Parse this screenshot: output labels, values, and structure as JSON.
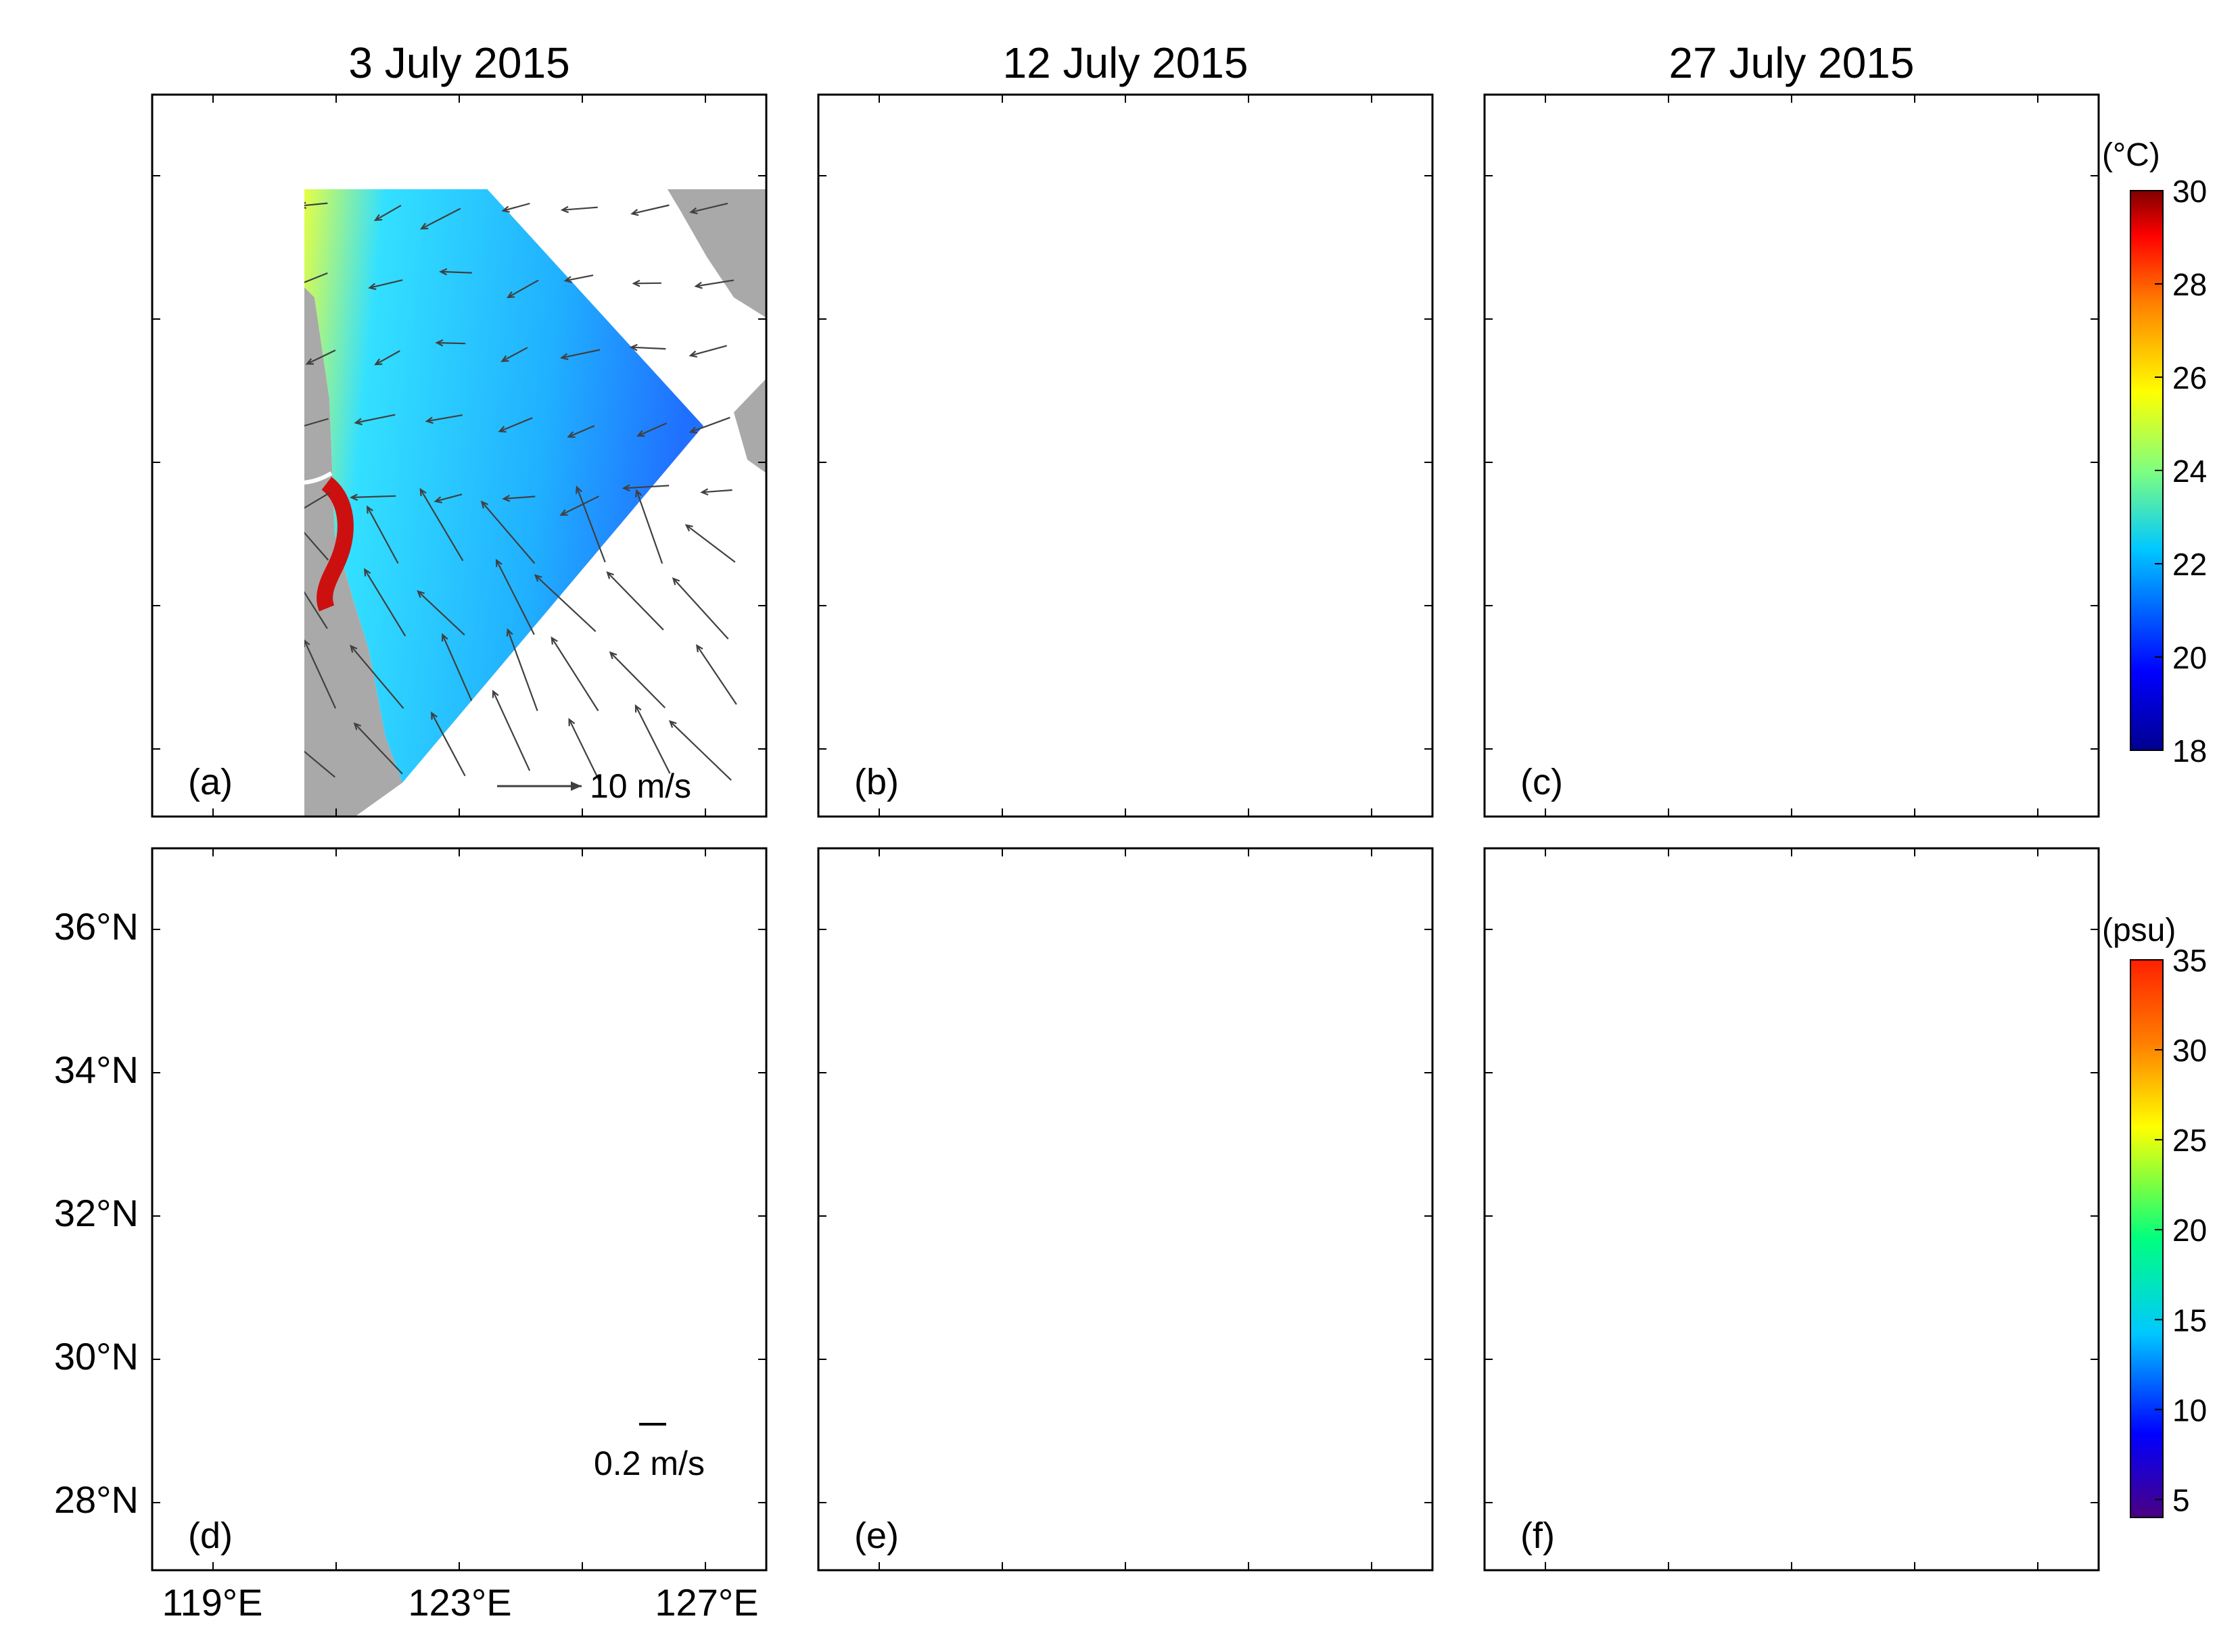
{
  "column_titles": [
    "3 July 2015",
    "12 July 2015",
    "27 July 2015"
  ],
  "panel_labels": [
    "(a)",
    "(b)",
    "(c)",
    "(d)",
    "(e)",
    "(f)"
  ],
  "wind_scale_label": "10 m/s",
  "current_scale_label": "0.2 m/s",
  "lat_ticks": [
    "36°N",
    "34°N",
    "32°N",
    "30°N",
    "28°N"
  ],
  "lon_ticks": [
    "119°E",
    "123°E",
    "127°E"
  ],
  "temperature_colorbar": {
    "unit": "(°C)",
    "min": 18,
    "max": 30,
    "tick_labels": [
      "30",
      "28",
      "26",
      "24",
      "22",
      "20",
      "18"
    ],
    "colormap": [
      "#00008f",
      "#0000ff",
      "#00c8ff",
      "#7fff7f",
      "#ffff00",
      "#ff7f00",
      "#ff0000",
      "#7f0000"
    ]
  },
  "salinity_colorbar": {
    "unit": "(psu)",
    "min": 4,
    "max": 35,
    "tick_labels": [
      "35",
      "30",
      "25",
      "20",
      "15",
      "10",
      "5"
    ],
    "colormap": [
      "#4b0082",
      "#0000ff",
      "#00c8ff",
      "#00ff7f",
      "#ffff00",
      "#ff7f00",
      "#ff0000"
    ]
  },
  "colors": {
    "land": "#a9a9a9",
    "wind_arrow": "#404040",
    "current_arrow": "#000000",
    "isohaline": "#ffffff"
  }
}
